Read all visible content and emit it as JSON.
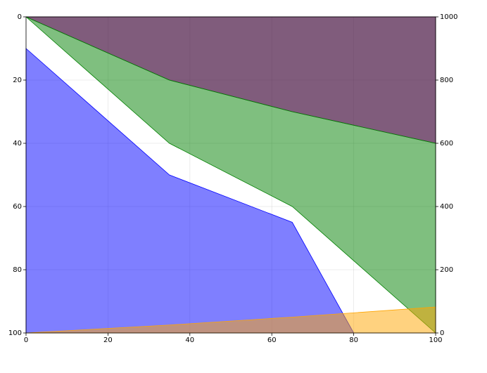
{
  "chart_data": {
    "type": "fill_between",
    "xlim": [
      0,
      100
    ],
    "xticks": [
      0,
      20,
      40,
      60,
      80,
      100
    ],
    "ylim": [
      100,
      0
    ],
    "yticks": [
      0,
      20,
      40,
      60,
      80,
      100
    ],
    "y2lim": [
      0,
      1000
    ],
    "y2ticks": [
      0,
      200,
      400,
      600,
      800,
      1000
    ],
    "grid": true,
    "series": [
      {
        "color": "#3c0536a6",
        "x": [
          0,
          35,
          65,
          100
        ],
        "y1": [
          0,
          20,
          30,
          40
        ],
        "y2": [
          0,
          0,
          0,
          0
        ]
      },
      {
        "color": "#00800080",
        "x": [
          0,
          35,
          65,
          100
        ],
        "y1": [
          0,
          40,
          60,
          100
        ],
        "y2": [
          0,
          20,
          30,
          40
        ]
      },
      {
        "color": "#0000ff80",
        "x": [
          0,
          35,
          65,
          80
        ],
        "y1": [
          10,
          50,
          65,
          100
        ],
        "y2": [
          100,
          100,
          100,
          100
        ]
      },
      {
        "color": "#ffa50080",
        "axis": "y2",
        "x": [
          0,
          35,
          65,
          100
        ],
        "y1": [
          0,
          25,
          50,
          82
        ],
        "y2": [
          0,
          0,
          0,
          0
        ]
      }
    ]
  }
}
